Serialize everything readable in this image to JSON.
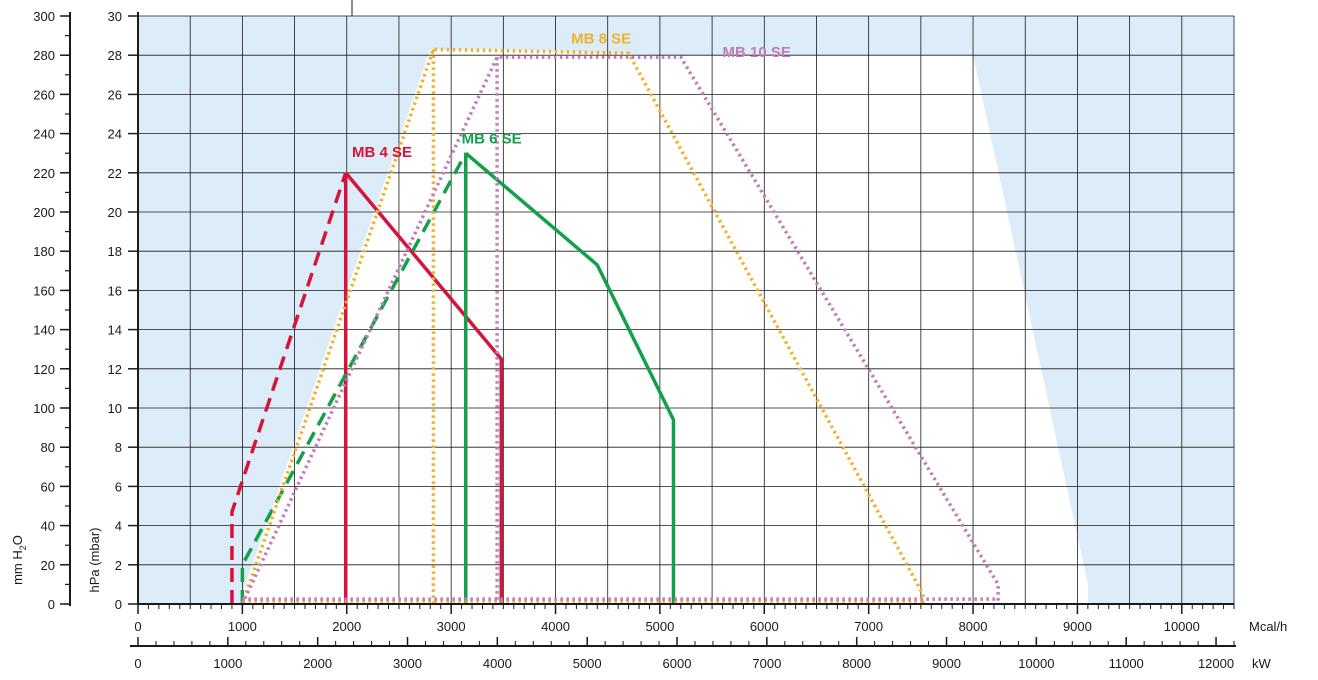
{
  "chart_data": {
    "type": "line",
    "colors": {
      "outside_region": "#dcedf9",
      "inside_region": "#ffffff",
      "grid": "#1a1a1a",
      "axis": "#1a1a1a"
    },
    "x_axes": [
      {
        "unit": "Mcal/h",
        "range": [
          0,
          10500
        ],
        "major_ticks": [
          0,
          1000,
          2000,
          3000,
          4000,
          5000,
          6000,
          7000,
          8000,
          9000,
          10000
        ],
        "minor_step": 100,
        "tick_labels": [
          "0",
          "1000",
          "2000",
          "3000",
          "4000",
          "5000",
          "6000",
          "7000",
          "8000",
          "9000",
          "10000"
        ]
      },
      {
        "unit": "kW",
        "range": [
          0,
          12200
        ],
        "major_ticks": [
          0,
          1000,
          2000,
          3000,
          4000,
          5000,
          6000,
          7000,
          8000,
          9000,
          10000,
          11000,
          12000
        ],
        "minor_step": 200,
        "tick_labels": [
          "0",
          "1000",
          "2000",
          "3000",
          "4000",
          "5000",
          "6000",
          "7000",
          "8000",
          "9000",
          "10000",
          "11000",
          "12000"
        ]
      }
    ],
    "y_axes": [
      {
        "label": "hPa (mbar)",
        "range": [
          0,
          30
        ],
        "major_ticks": [
          0,
          2,
          4,
          6,
          8,
          10,
          12,
          14,
          16,
          18,
          20,
          22,
          24,
          26,
          28,
          30
        ],
        "tick_labels": [
          "0",
          "2",
          "4",
          "6",
          "8",
          "10",
          "12",
          "14",
          "16",
          "18",
          "20",
          "22",
          "24",
          "26",
          "28",
          "30"
        ]
      },
      {
        "label": "mm H",
        "label_sub": "2",
        "label_end": "O",
        "range": [
          0,
          300
        ],
        "major_ticks": [
          0,
          20,
          40,
          60,
          80,
          100,
          120,
          140,
          160,
          180,
          200,
          220,
          240,
          260,
          280,
          300
        ],
        "minor_step": 10,
        "tick_labels": [
          "0",
          "20",
          "40",
          "60",
          "80",
          "100",
          "120",
          "140",
          "160",
          "180",
          "200",
          "220",
          "240",
          "260",
          "280",
          "300"
        ]
      }
    ],
    "grid": true,
    "envelope": {
      "x": [
        1000,
        1000,
        2800,
        3500,
        5000,
        5000,
        8000,
        9100,
        9100
      ],
      "y": [
        0,
        0.5,
        28.3,
        28.3,
        28,
        28,
        28,
        1.0,
        0
      ]
    },
    "series": [
      {
        "name": "MB 4 SE",
        "color": "#d6133a",
        "style": "solid",
        "label_pos": [
          2050,
          22.8
        ],
        "segments": [
          {
            "style": "dashed",
            "x": [
              900,
              900,
              1990
            ],
            "y": [
              0,
              4.7,
              22
            ]
          },
          {
            "style": "solid",
            "x": [
              1990,
              3480,
              3480
            ],
            "y": [
              22,
              12.5,
              0
            ]
          },
          {
            "style": "solid",
            "x": [
              1990,
              1990
            ],
            "y": [
              22,
              0
            ]
          }
        ]
      },
      {
        "name": "MB 6 SE",
        "color": "#14a04a",
        "style": "solid",
        "label_pos": [
          3100,
          23.5
        ],
        "segments": [
          {
            "style": "dashed",
            "x": [
              1000,
              1000,
              3140
            ],
            "y": [
              0,
              2,
              23
            ]
          },
          {
            "style": "solid",
            "x": [
              3140,
              4400,
              5130,
              5130
            ],
            "y": [
              23,
              17.3,
              9.4,
              0
            ]
          },
          {
            "style": "solid",
            "x": [
              3140,
              3140
            ],
            "y": [
              23,
              0
            ]
          }
        ]
      },
      {
        "name": "MB 8 SE",
        "color": "#f0b12a",
        "style": "dotted",
        "label_pos": [
          4150,
          28.6
        ],
        "segments": [
          {
            "style": "dotted",
            "x": [
              1000,
              2830,
              4700,
              7520,
              7520
            ],
            "y": [
              0,
              28.3,
              28.1,
              0.5,
              0
            ]
          },
          {
            "style": "dotted",
            "x": [
              2830,
              2830
            ],
            "y": [
              28.3,
              0
            ]
          },
          {
            "style": "dotted",
            "x": [
              1000,
              7520
            ],
            "y": [
              0.15,
              0.15
            ]
          }
        ]
      },
      {
        "name": "MB 10 SE",
        "color": "#c07cb8",
        "style": "dotted",
        "label_pos": [
          5600,
          27.9
        ],
        "segments": [
          {
            "style": "dotted",
            "x": [
              1000,
              3440,
              5200,
              8240,
              8240
            ],
            "y": [
              0,
              27.9,
              27.9,
              1.0,
              0
            ]
          },
          {
            "style": "dotted",
            "x": [
              3440,
              3440
            ],
            "y": [
              27.9,
              0
            ]
          },
          {
            "style": "dotted",
            "x": [
              1000,
              8240
            ],
            "y": [
              0.25,
              0.25
            ]
          }
        ]
      }
    ]
  }
}
